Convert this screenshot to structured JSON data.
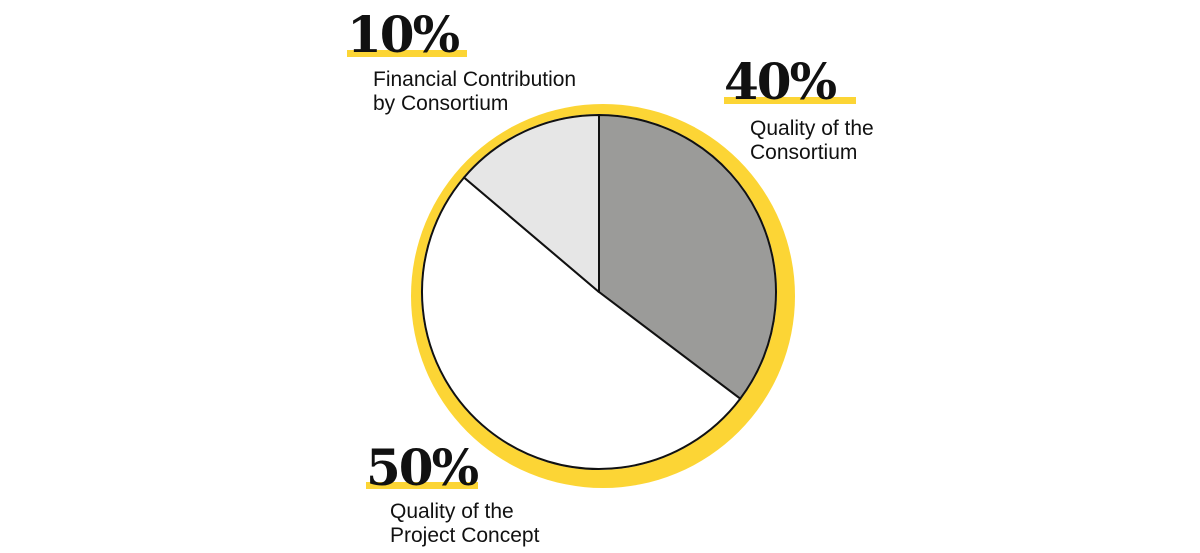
{
  "chart_data": {
    "type": "pie",
    "slices": [
      {
        "percent_label": "40%",
        "label_lines": [
          "Quality of the",
          "Consortium"
        ],
        "color": "#9b9b99"
      },
      {
        "percent_label": "50%",
        "label_lines": [
          "Quality of the",
          "Project Concept"
        ],
        "color": "#ffffff"
      },
      {
        "percent_label": "10%",
        "label_lines": [
          "Financial Contribution",
          "by Consortium"
        ],
        "color": "#e6e6e6"
      }
    ],
    "percent_shares": [
      40,
      50,
      10
    ],
    "accent_color": "#fcd535",
    "outline_color": "#111111"
  }
}
